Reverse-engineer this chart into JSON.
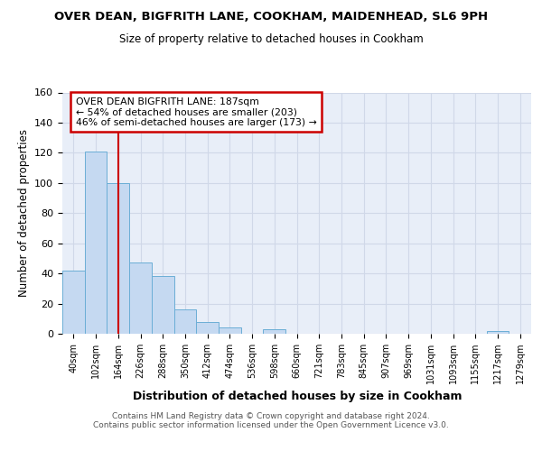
{
  "title": "OVER DEAN, BIGFRITH LANE, COOKHAM, MAIDENHEAD, SL6 9PH",
  "subtitle": "Size of property relative to detached houses in Cookham",
  "xlabel": "Distribution of detached houses by size in Cookham",
  "ylabel": "Number of detached properties",
  "bin_labels": [
    "40sqm",
    "102sqm",
    "164sqm",
    "226sqm",
    "288sqm",
    "350sqm",
    "412sqm",
    "474sqm",
    "536sqm",
    "598sqm",
    "660sqm",
    "721sqm",
    "783sqm",
    "845sqm",
    "907sqm",
    "969sqm",
    "1031sqm",
    "1093sqm",
    "1155sqm",
    "1217sqm",
    "1279sqm"
  ],
  "bar_heights": [
    42,
    121,
    100,
    47,
    38,
    16,
    8,
    4,
    0,
    3,
    0,
    0,
    0,
    0,
    0,
    0,
    0,
    0,
    0,
    2,
    0
  ],
  "bar_color": "#c5d9f1",
  "bar_edge_color": "#6baed6",
  "background_color": "#e8eef8",
  "grid_color": "#d0d8e8",
  "red_line_x": 2,
  "annotation_line1": "OVER DEAN BIGFRITH LANE: 187sqm",
  "annotation_line2": "← 54% of detached houses are smaller (203)",
  "annotation_line3": "46% of semi-detached houses are larger (173) →",
  "annotation_box_color": "#ffffff",
  "annotation_box_edge_color": "#cc0000",
  "ylim": [
    0,
    160
  ],
  "yticks": [
    0,
    20,
    40,
    60,
    80,
    100,
    120,
    140,
    160
  ],
  "footer_line1": "Contains HM Land Registry data © Crown copyright and database right 2024.",
  "footer_line2": "Contains public sector information licensed under the Open Government Licence v3.0."
}
